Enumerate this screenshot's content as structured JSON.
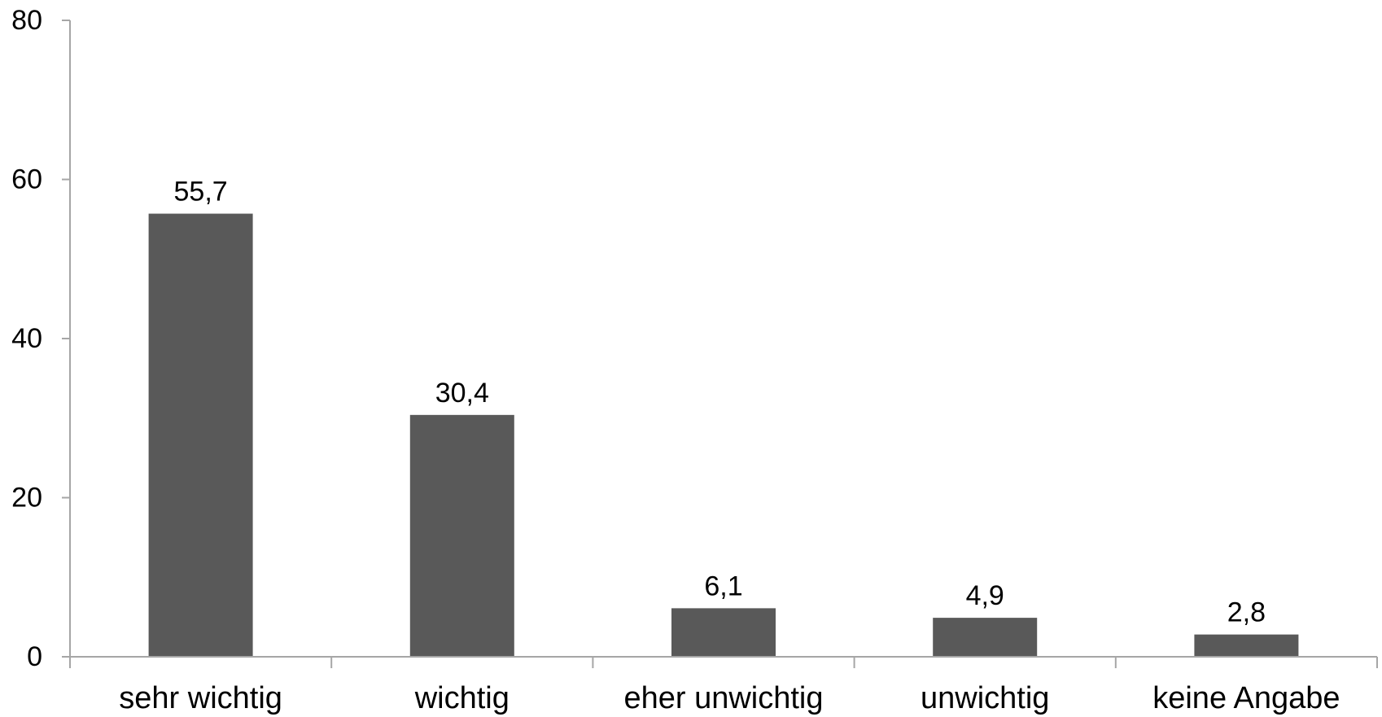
{
  "chart_data": {
    "type": "bar",
    "categories": [
      "sehr wichtig",
      "wichtig",
      "eher unwichtig",
      "unwichtig",
      "keine Angabe"
    ],
    "values": [
      55.7,
      30.4,
      6.1,
      4.9,
      2.8
    ],
    "data_labels": [
      "55,7",
      "30,4",
      "6,1",
      "4,9",
      "2,8"
    ],
    "title": "",
    "xlabel": "",
    "ylabel": "",
    "ylim": [
      0,
      80
    ],
    "yticks": [
      0,
      20,
      40,
      60,
      80
    ],
    "grid": false,
    "legend": "none",
    "bar_color": "#595959",
    "axis_color": "#a6a6a6"
  }
}
